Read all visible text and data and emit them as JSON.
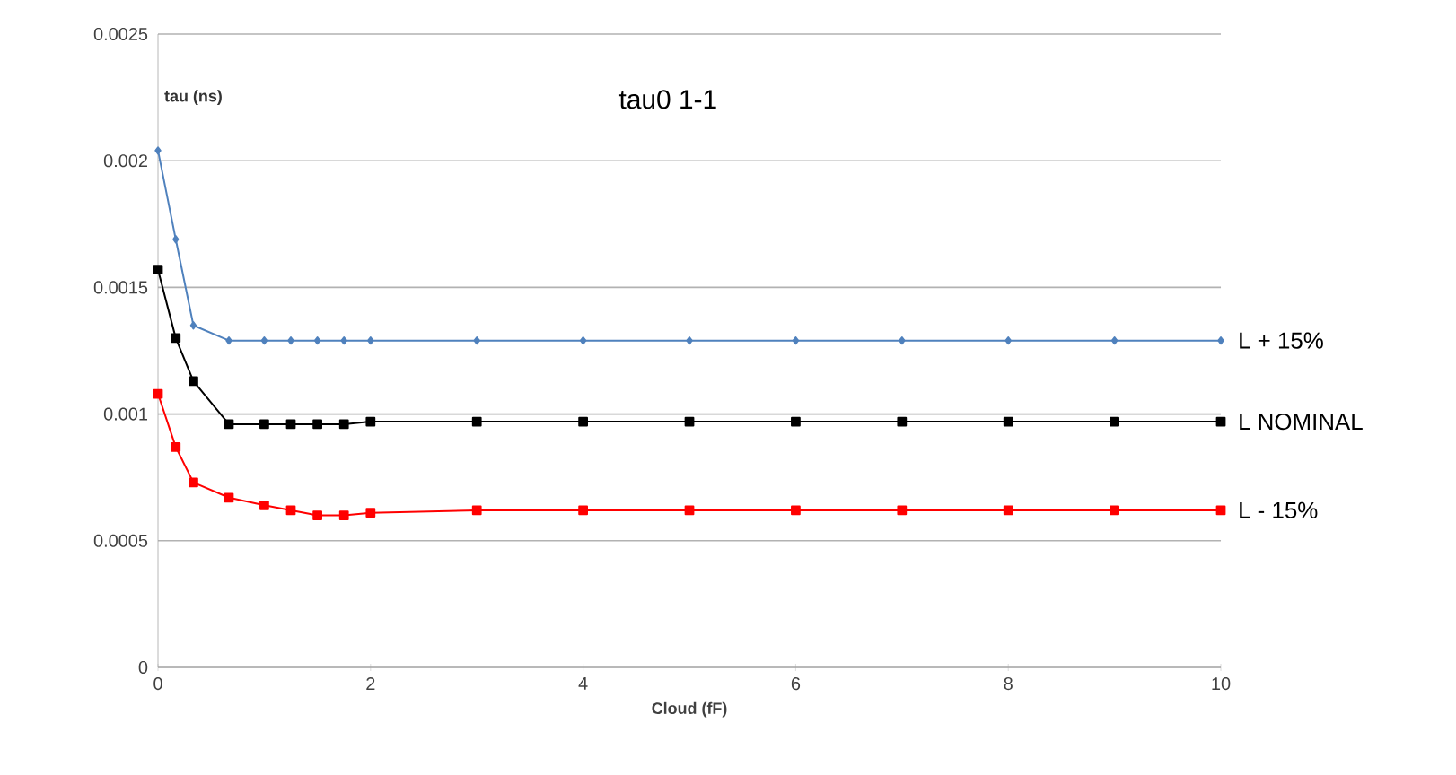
{
  "chart_data": {
    "type": "line",
    "title": "tau0 1-1",
    "xlabel": "Cloud (fF)",
    "ylabel": "tau (ns)",
    "x": [
      0,
      0.167,
      0.333,
      0.667,
      1,
      1.25,
      1.5,
      1.75,
      2,
      3,
      4,
      5,
      6,
      7,
      8,
      9,
      10
    ],
    "series": [
      {
        "name": "L + 15%",
        "color": "#4f81bd",
        "marker": "diamond",
        "values": [
          0.00204,
          0.00169,
          0.00135,
          0.00129,
          0.00129,
          0.00129,
          0.00129,
          0.00129,
          0.00129,
          0.00129,
          0.00129,
          0.00129,
          0.00129,
          0.00129,
          0.00129,
          0.00129,
          0.00129
        ]
      },
      {
        "name": "L NOMINAL",
        "color": "#000000",
        "marker": "square",
        "values": [
          0.00157,
          0.0013,
          0.00113,
          0.00096,
          0.00096,
          0.00096,
          0.00096,
          0.00096,
          0.00097,
          0.00097,
          0.00097,
          0.00097,
          0.00097,
          0.00097,
          0.00097,
          0.00097,
          0.00097
        ]
      },
      {
        "name": "L - 15%",
        "color": "#ff0000",
        "marker": "square",
        "values": [
          0.00108,
          0.00087,
          0.00073,
          0.00067,
          0.00064,
          0.00062,
          0.0006,
          0.0006,
          0.00061,
          0.00062,
          0.00062,
          0.00062,
          0.00062,
          0.00062,
          0.00062,
          0.00062,
          0.00062
        ]
      }
    ],
    "xlim": [
      0,
      10
    ],
    "xticks": [
      0,
      2,
      4,
      6,
      8,
      10
    ],
    "ylim": [
      0,
      0.0025
    ],
    "yticks": [
      0,
      0.0005,
      0.001,
      0.0015,
      0.002,
      0.0025
    ],
    "grid": "y",
    "line_style": "solid"
  }
}
